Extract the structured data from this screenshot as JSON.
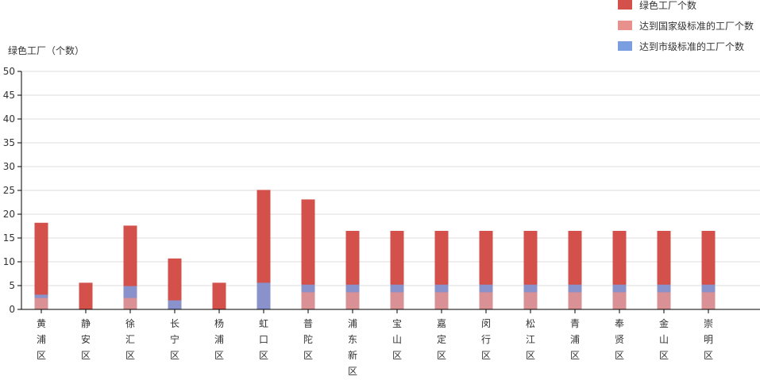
{
  "chart_data": {
    "type": "bar",
    "stacked": true,
    "ylabel": "绿色工厂（个数）",
    "ylim": [
      0,
      50
    ],
    "yticks": [
      0,
      5,
      10,
      15,
      20,
      25,
      30,
      35,
      40,
      45,
      50
    ],
    "grid": true,
    "legend_position": "top-right",
    "categories": [
      "黄浦区",
      "静安区",
      "徐汇区",
      "长宁区",
      "杨浦区",
      "虹口区",
      "普陀区",
      "浦东新区",
      "宝山区",
      "嘉定区",
      "闵行区",
      "松江区",
      "青浦区",
      "奉贤区",
      "金山区",
      "崇明区"
    ],
    "series": [
      {
        "name": "绿色工厂个数",
        "color": "#d4504a",
        "values": [
          18.2,
          5.6,
          17.6,
          10.7,
          5.6,
          25.1,
          23.1,
          16.5,
          16.5,
          16.5,
          16.5,
          16.5,
          16.5,
          16.5,
          16.5,
          16.5
        ]
      },
      {
        "name": "达到国家级标准的工厂个数",
        "color": "#e8918c",
        "values": [
          2.4,
          0,
          2.4,
          0,
          0,
          0,
          3.6,
          3.6,
          3.6,
          3.6,
          3.6,
          3.6,
          3.6,
          3.6,
          3.6,
          3.6
        ]
      },
      {
        "name": "达到市级标准的工厂个数",
        "color": "#7b9ee0",
        "values": [
          3.1,
          0,
          4.9,
          1.9,
          0,
          5.6,
          5.2,
          5.2,
          5.2,
          5.2,
          5.2,
          5.2,
          5.2,
          5.2,
          5.2,
          5.2
        ]
      }
    ]
  }
}
